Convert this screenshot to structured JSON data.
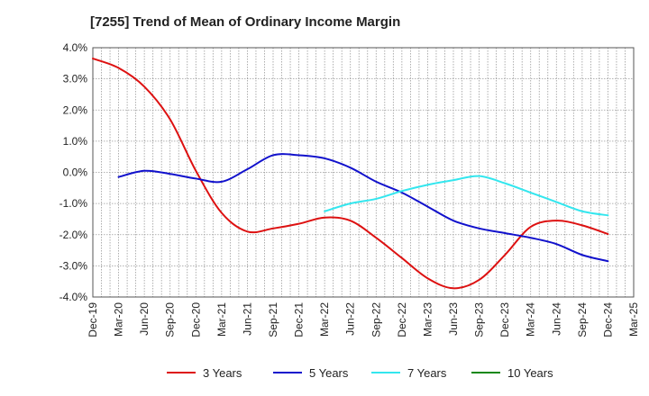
{
  "chart_data": {
    "type": "line",
    "title": "[7255]  Trend of Mean of Ordinary Income Margin",
    "xlabel": "",
    "ylabel": "",
    "ylim": [
      -4.0,
      4.0
    ],
    "yticks": [
      4.0,
      3.0,
      2.0,
      1.0,
      0.0,
      -1.0,
      -2.0,
      -3.0,
      -4.0
    ],
    "ytick_labels": [
      "4.0%",
      "3.0%",
      "2.0%",
      "1.0%",
      "0.0%",
      "-1.0%",
      "-2.0%",
      "-3.0%",
      "-4.0%"
    ],
    "x_categories": [
      "Dec-19",
      "Mar-20",
      "Jun-20",
      "Sep-20",
      "Dec-20",
      "Mar-21",
      "Jun-21",
      "Sep-21",
      "Dec-21",
      "Mar-22",
      "Jun-22",
      "Sep-22",
      "Dec-22",
      "Mar-23",
      "Jun-23",
      "Sep-23",
      "Dec-23",
      "Mar-24",
      "Jun-24",
      "Sep-24",
      "Dec-24",
      "Mar-25"
    ],
    "grid": true,
    "legend_position": "bottom",
    "series": [
      {
        "name": "3 Years",
        "color": "#dd1111",
        "values": [
          3.65,
          3.35,
          2.75,
          1.7,
          0.05,
          -1.3,
          -1.9,
          -1.8,
          -1.65,
          -1.45,
          -1.55,
          -2.1,
          -2.75,
          -3.4,
          -3.72,
          -3.45,
          -2.65,
          -1.75,
          -1.55,
          -1.7,
          -1.98,
          null
        ]
      },
      {
        "name": "5 Years",
        "color": "#1111cc",
        "values": [
          null,
          -0.15,
          0.05,
          -0.05,
          -0.2,
          -0.3,
          0.1,
          0.55,
          0.55,
          0.45,
          0.15,
          -0.3,
          -0.65,
          -1.1,
          -1.55,
          -1.8,
          -1.95,
          -2.1,
          -2.3,
          -2.65,
          -2.85,
          null
        ]
      },
      {
        "name": "7 Years",
        "color": "#33e6ee",
        "values": [
          null,
          null,
          null,
          null,
          null,
          null,
          null,
          null,
          null,
          -1.25,
          -1.0,
          -0.85,
          -0.6,
          -0.4,
          -0.25,
          -0.12,
          -0.35,
          -0.65,
          -0.95,
          -1.25,
          -1.38,
          null
        ]
      },
      {
        "name": "10 Years",
        "color": "#118811",
        "values": [
          null,
          null,
          null,
          null,
          null,
          null,
          null,
          null,
          null,
          null,
          null,
          null,
          null,
          null,
          null,
          null,
          null,
          null,
          null,
          null,
          null,
          null
        ]
      }
    ]
  }
}
